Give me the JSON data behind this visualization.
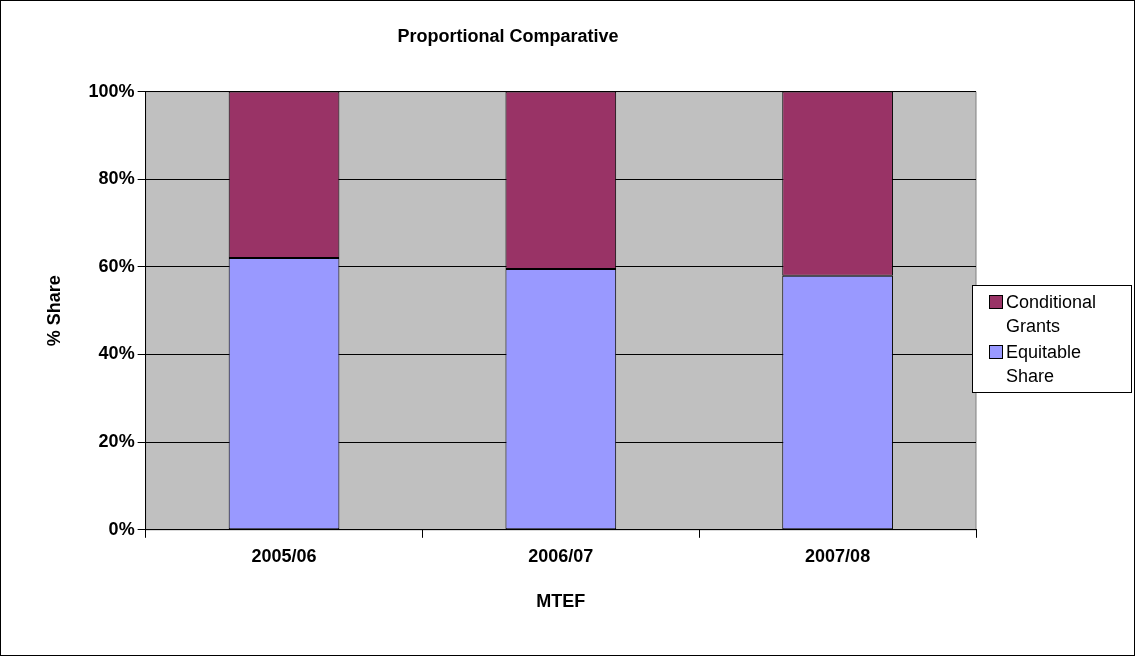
{
  "chart_data": {
    "type": "bar",
    "title": "Proportional Comparative",
    "xlabel": "MTEF",
    "ylabel": "% Share",
    "categories": [
      "2005/06",
      "2006/07",
      "2007/08"
    ],
    "stacked": true,
    "series": [
      {
        "name": "Equitable Share",
        "color": "#9999ff",
        "values": [
          62,
          59.5,
          58
        ]
      },
      {
        "name": "Conditional Grants",
        "color": "#993366",
        "values": [
          38,
          40.5,
          42
        ]
      }
    ],
    "ylim": [
      0,
      100
    ],
    "yticks": [
      {
        "value": 0,
        "label": "0%"
      },
      {
        "value": 20,
        "label": "20%"
      },
      {
        "value": 40,
        "label": "40%"
      },
      {
        "value": 60,
        "label": "60%"
      },
      {
        "value": 80,
        "label": "80%"
      },
      {
        "value": 100,
        "label": "100%"
      }
    ],
    "grid": "y",
    "legend": "right"
  }
}
